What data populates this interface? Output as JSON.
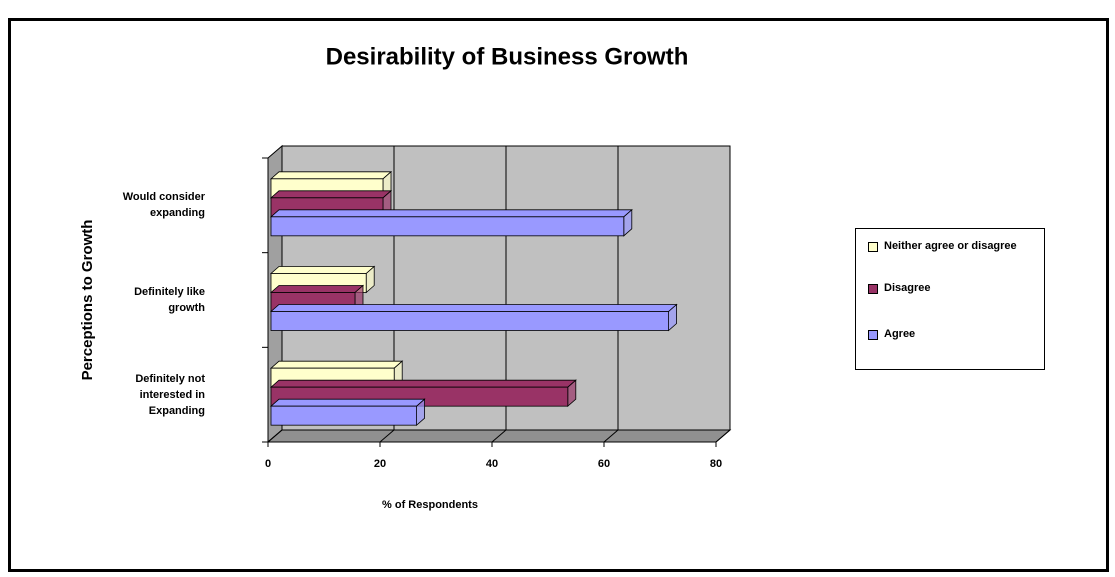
{
  "chart_data": {
    "type": "bar3d_horizontal",
    "title": "Desirability of Business Growth",
    "x_label": "% of Respondents",
    "y_label": "Perceptions to Growth",
    "categories": [
      "Definitely not interested in Expanding",
      "Definitely like growth",
      "Would consider expanding"
    ],
    "series": [
      {
        "name": "Neither agree or disagree",
        "color": "#ffffcc",
        "values": [
          22,
          17,
          20
        ]
      },
      {
        "name": "Disagree",
        "color": "#993366",
        "values": [
          53,
          15,
          20
        ]
      },
      {
        "name": "Agree",
        "color": "#9999ff",
        "values": [
          26,
          71,
          63
        ]
      }
    ],
    "xlim": [
      0,
      80
    ],
    "xticks": [
      0,
      20,
      40,
      60,
      80
    ],
    "grid": true,
    "legend": "right"
  }
}
